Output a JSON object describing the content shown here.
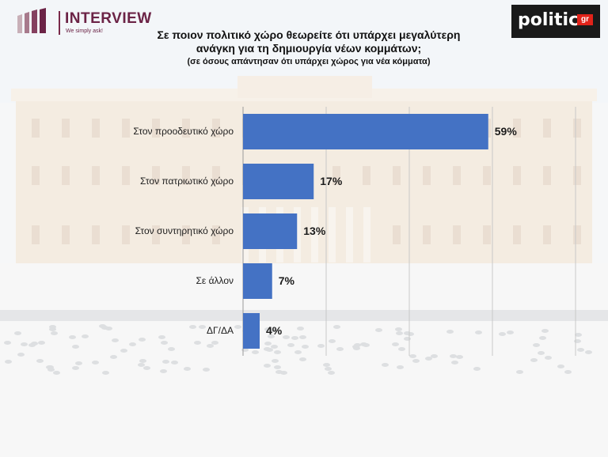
{
  "header": {
    "left_logo": {
      "name": "INTERVIEW",
      "tagline": "We simply ask!"
    },
    "right_logo": {
      "name": "politic",
      "suffix": "gr"
    }
  },
  "titles": {
    "main": "Σε ποιον πολιτικό χώρο θεωρείτε ότι υπάρχει μεγαλύτερη ανάγκη για τη δημιουργία νέων κομμάτων;",
    "sub": "(σε όσους απάντησαν ότι υπάρχει χώρος για νέα κόμματα)"
  },
  "colors": {
    "bar": "#4472c4",
    "brand_left": "#6b2346",
    "brand_right_bg": "#1a1a1a",
    "brand_right_accent": "#e2231a"
  },
  "chart_data": {
    "type": "bar",
    "orientation": "horizontal",
    "categories": [
      "Στον προοδευτικό χώρο",
      "Στον πατριωτικό χώρο",
      "Στον συντηρητικό χώρο",
      "Σε άλλον",
      "ΔΓ/ΔΑ"
    ],
    "values": [
      59,
      17,
      13,
      7,
      4
    ],
    "value_labels": [
      "59%",
      "17%",
      "13%",
      "7%",
      "4%"
    ],
    "unit": "%",
    "xlim": [
      0,
      80
    ],
    "grid": true,
    "legend": "none"
  }
}
